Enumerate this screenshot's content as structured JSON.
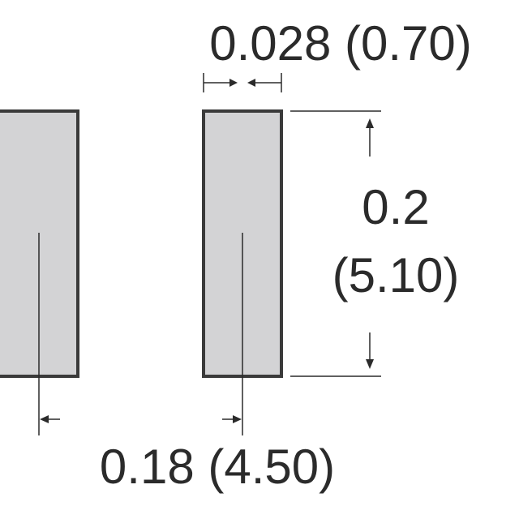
{
  "dimensions": {
    "pad_width": "0.028 (0.70)",
    "pad_length_in": "0.2",
    "pad_length_mm": "(5.10)",
    "pitch": "0.18 (4.50)"
  }
}
